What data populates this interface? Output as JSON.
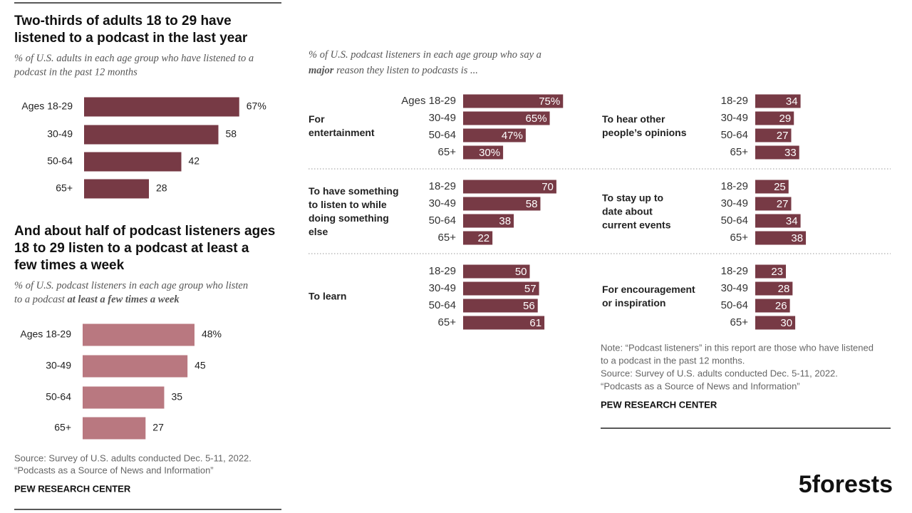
{
  "chart_data": [
    {
      "type": "bar",
      "title": [
        "Two-thirds of adults 18 to 29 have",
        "listened to a podcast in the last year"
      ],
      "subtitle": [
        [
          "% of U.S. adults in each age group who have listened to a"
        ],
        [
          "podcast in the past 12 months"
        ]
      ],
      "categories": [
        "Ages 18-29",
        "30-49",
        "50-64",
        "65+"
      ],
      "values": [
        67,
        58,
        42,
        28
      ],
      "value_labels": [
        "67%",
        "58",
        "42",
        "28"
      ],
      "color": "#773a45"
    },
    {
      "type": "bar",
      "title": [
        "And about half of podcast listeners ages",
        "18 to 29 listen to a podcast at least a",
        "few times a week"
      ],
      "subtitle": [
        [
          "% of U.S. podcast listeners in each age group who listen"
        ],
        [
          "to a podcast ",
          {
            "text": "at least a few times a week",
            "bold": true
          }
        ]
      ],
      "categories": [
        "Ages 18-29",
        "30-49",
        "50-64",
        "65+"
      ],
      "values": [
        48,
        45,
        35,
        27
      ],
      "value_labels": [
        "48%",
        "45",
        "35",
        "27"
      ],
      "color": "#b97880"
    },
    {
      "type": "bar",
      "label": [
        "For",
        "entertainment"
      ],
      "categories": [
        "Ages 18-29",
        "30-49",
        "50-64",
        "65+"
      ],
      "values": [
        75,
        65,
        47,
        30
      ],
      "value_labels": [
        "75%",
        "65%",
        "47%",
        "30%"
      ],
      "color": "#773a45"
    },
    {
      "type": "bar",
      "label": [
        "To hear other",
        "people’s opinions"
      ],
      "categories": [
        "18-29",
        "30-49",
        "50-64",
        "65+"
      ],
      "values": [
        34,
        29,
        27,
        33
      ],
      "color": "#773a45"
    },
    {
      "type": "bar",
      "label": [
        "To have something",
        "to listen to while",
        "doing something",
        "else"
      ],
      "categories": [
        "18-29",
        "30-49",
        "50-64",
        "65+"
      ],
      "values": [
        70,
        58,
        38,
        22
      ],
      "color": "#773a45"
    },
    {
      "type": "bar",
      "label": [
        "To stay up to",
        "date about",
        "current events"
      ],
      "categories": [
        "18-29",
        "30-49",
        "50-64",
        "65+"
      ],
      "values": [
        25,
        27,
        34,
        38
      ],
      "color": "#773a45"
    },
    {
      "type": "bar",
      "label": [
        "To learn"
      ],
      "categories": [
        "18-29",
        "30-49",
        "50-64",
        "65+"
      ],
      "values": [
        50,
        57,
        56,
        61
      ],
      "color": "#773a45"
    },
    {
      "type": "bar",
      "label": [
        "For encouragement",
        "or inspiration"
      ],
      "categories": [
        "18-29",
        "30-49",
        "50-64",
        "65+"
      ],
      "values": [
        23,
        28,
        26,
        30
      ],
      "color": "#773a45"
    }
  ],
  "right_subtitle": [
    [
      "% of U.S. podcast listeners in each age group who say a"
    ],
    [
      {
        "text": "major",
        "bold": true
      },
      " reason they listen to podcasts is ..."
    ]
  ],
  "left_source": [
    "Source: Survey of U.S. adults conducted Dec. 5-11, 2022.",
    "“Podcasts as a Source of News and Information”"
  ],
  "left_credit": "PEW RESEARCH CENTER",
  "note": [
    "Note: “Podcast listeners” in this report are those who have listened",
    "to a podcast in the past 12 months.",
    "Source: Survey of U.S. adults conducted Dec. 5-11, 2022.",
    "“Podcasts as a Source of News and Information”"
  ],
  "right_credit": "PEW RESEARCH CENTER",
  "logo": "5forests"
}
